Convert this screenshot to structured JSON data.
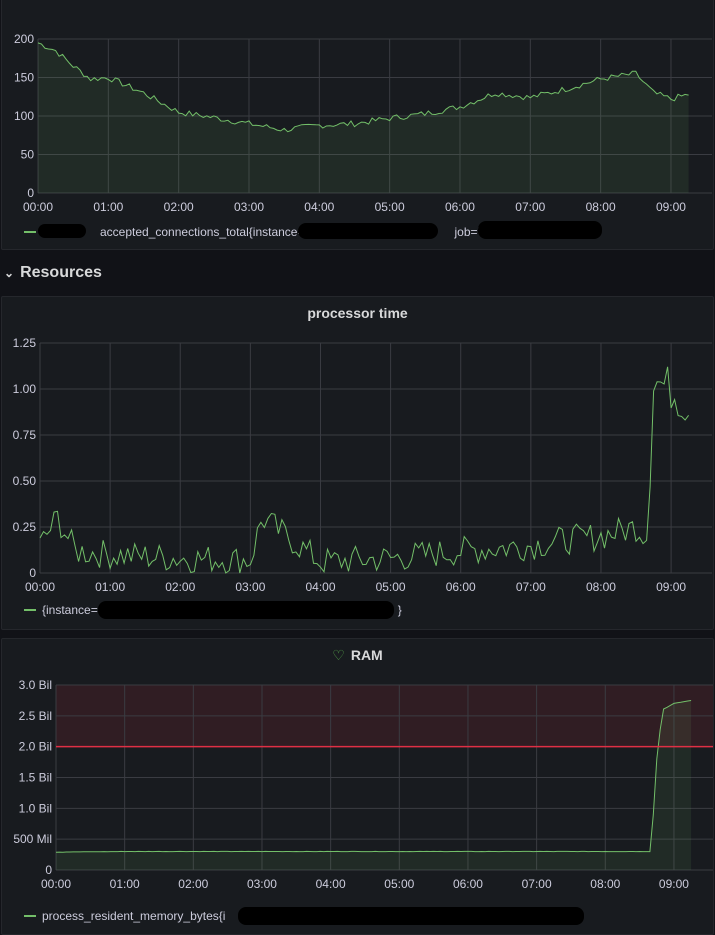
{
  "theme": {
    "series_color": "#73bf69",
    "threshold_color": "#e02f44",
    "background": "#111217",
    "panel_background": "#181b1f",
    "grid_color": "#3a3c42"
  },
  "row": {
    "title": "Resources",
    "collapse_icon": "chevron-down-icon"
  },
  "panels": {
    "connections": {
      "title": "",
      "legend_label": "accepted_connections_total{instance=",
      "legend_suffix": "job=\"",
      "x_ticks": [
        "00:00",
        "01:00",
        "02:00",
        "03:00",
        "04:00",
        "05:00",
        "06:00",
        "07:00",
        "08:00",
        "09:00"
      ],
      "y_ticks": [
        "0",
        "50",
        "100",
        "150",
        "200"
      ]
    },
    "processor": {
      "title": "processor time",
      "legend_label": "{instance=",
      "legend_suffix": "}",
      "x_ticks": [
        "00:00",
        "01:00",
        "02:00",
        "03:00",
        "04:00",
        "05:00",
        "06:00",
        "07:00",
        "08:00",
        "09:00"
      ],
      "y_ticks": [
        "0",
        "0.25",
        "0.50",
        "0.75",
        "1.00",
        "1.25"
      ]
    },
    "ram": {
      "title": "RAM",
      "title_icon": "heart-icon",
      "legend_label": "process_resident_memory_bytes{i",
      "x_ticks": [
        "00:00",
        "01:00",
        "02:00",
        "03:00",
        "04:00",
        "05:00",
        "06:00",
        "07:00",
        "08:00",
        "09:00"
      ],
      "y_ticks": [
        "0",
        "500 Mil",
        "1.0 Bil",
        "1.5 Bil",
        "2.0 Bil",
        "2.5 Bil",
        "3.0 Bil"
      ],
      "threshold": 2000000000
    }
  },
  "chart_data": [
    {
      "type": "area",
      "title": "",
      "series": [
        {
          "name": "accepted_connections_total",
          "x": [
            "00:00",
            "00:15",
            "00:30",
            "00:45",
            "01:00",
            "01:30",
            "02:00",
            "02:30",
            "03:00",
            "03:30",
            "04:00",
            "04:30",
            "05:00",
            "05:30",
            "06:00",
            "06:30",
            "07:00",
            "07:30",
            "08:00",
            "08:30",
            "08:45",
            "09:00",
            "09:15"
          ],
          "values": [
            195,
            185,
            165,
            148,
            150,
            130,
            105,
            98,
            90,
            82,
            88,
            90,
            97,
            103,
            112,
            130,
            124,
            135,
            148,
            155,
            130,
            122,
            128
          ]
        }
      ],
      "ylim": [
        0,
        210
      ]
    },
    {
      "type": "line",
      "title": "processor time",
      "series": [
        {
          "name": "{instance=",
          "x": [
            "00:00",
            "00:15",
            "00:30",
            "01:00",
            "02:00",
            "03:00",
            "03:10",
            "04:00",
            "05:00",
            "06:00",
            "07:00",
            "07:30",
            "08:00",
            "08:30",
            "08:40",
            "08:45",
            "09:00",
            "09:15"
          ],
          "values": [
            0.15,
            0.3,
            0.12,
            0.1,
            0.08,
            0.07,
            0.3,
            0.06,
            0.08,
            0.12,
            0.15,
            0.18,
            0.2,
            0.25,
            0.2,
            1.05,
            1.0,
            0.9
          ]
        }
      ],
      "ylim": [
        0,
        1.25
      ]
    },
    {
      "type": "area",
      "title": "RAM",
      "series": [
        {
          "name": "process_resident_memory_bytes",
          "x": [
            "00:00",
            "01:00",
            "02:00",
            "03:00",
            "04:00",
            "05:00",
            "06:00",
            "07:00",
            "08:00",
            "08:40",
            "08:45",
            "08:50",
            "09:00",
            "09:15"
          ],
          "values": [
            290000000,
            300000000,
            300000000,
            300000000,
            300000000,
            300000000,
            300000000,
            300000000,
            300000000,
            300000000,
            1800000000,
            2600000000,
            2700000000,
            2750000000
          ]
        }
      ],
      "ylim": [
        0,
        3000000000
      ],
      "thresholds": [
        2000000000
      ]
    }
  ]
}
